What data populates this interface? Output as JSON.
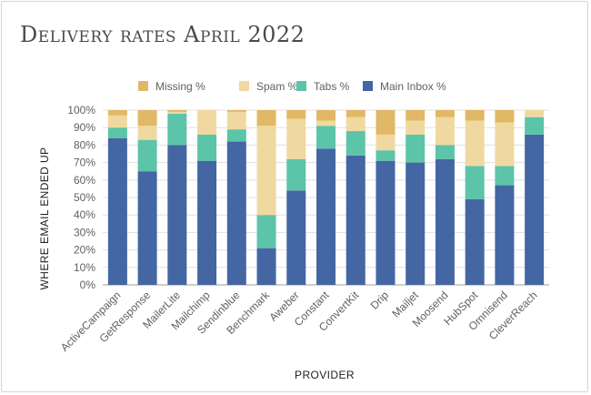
{
  "chart_data": {
    "type": "bar",
    "stacked": true,
    "title": "Delivery rates April 2022",
    "xlabel": "PROVIDER",
    "ylabel": "WHERE EMAIL ENDED UP",
    "ylim": [
      0,
      100
    ],
    "yticks": [
      "0%",
      "10%",
      "20%",
      "30%",
      "40%",
      "50%",
      "60%",
      "70%",
      "80%",
      "90%",
      "100%"
    ],
    "grid": true,
    "legend_position": "top",
    "categories": [
      "ActiveCampaign",
      "GetResponse",
      "MailerLite",
      "Mailchimp",
      "Sendinblue",
      "Benchmark",
      "Aweber",
      "Constant",
      "ConvertKit",
      "Drip",
      "Mailjet",
      "Moosend",
      "HubSpot",
      "Omnisend",
      "CleverReach"
    ],
    "series": [
      {
        "name": "Main Inbox %",
        "color": "#4466a3",
        "values": [
          84,
          65,
          80,
          71,
          82,
          21,
          54,
          78,
          74,
          71,
          70,
          72,
          49,
          57,
          86
        ]
      },
      {
        "name": "Tabs %",
        "color": "#5cc4a8",
        "values": [
          6,
          18,
          18,
          15,
          7,
          19,
          18,
          13,
          14,
          6,
          16,
          8,
          19,
          11,
          10
        ]
      },
      {
        "name": "Spam %",
        "color": "#f0d9a0",
        "values": [
          7,
          8,
          1,
          14,
          10,
          51,
          23,
          3,
          8,
          9,
          8,
          16,
          26,
          25,
          4
        ]
      },
      {
        "name": "Missing %",
        "color": "#e1b865",
        "values": [
          3,
          9,
          1,
          0,
          1,
          9,
          5,
          6,
          4,
          14,
          6,
          4,
          6,
          7,
          0
        ]
      }
    ],
    "legend_order": [
      "Missing %",
      "Spam %",
      "Tabs %",
      "Main Inbox %"
    ]
  }
}
